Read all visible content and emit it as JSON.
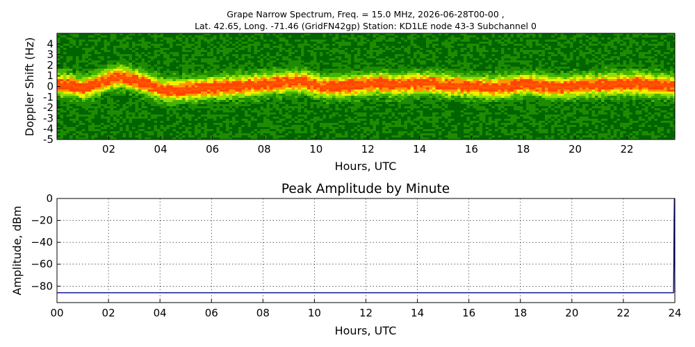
{
  "figure": {
    "title_line1": "Grape Narrow Spectrum, Freq. = 15.0 MHz, 2026-06-28T00-00 ,",
    "title_line2": "Lat.  42.65, Long. -71.46 (GridFN42gp) Station: KD1LE node 43-3 Subchannel 0"
  },
  "chart_data": [
    {
      "type": "heatmap",
      "title": "",
      "xlabel": "Hours, UTC",
      "ylabel": "Doppler Shift (Hz)",
      "xlim": [
        0,
        23.85
      ],
      "ylim": [
        -5,
        5
      ],
      "x_tick_values": [
        2,
        4,
        6,
        8,
        10,
        12,
        14,
        16,
        18,
        20,
        22
      ],
      "x_tick_labels": [
        "02",
        "04",
        "06",
        "08",
        "10",
        "12",
        "14",
        "16",
        "18",
        "20",
        "22"
      ],
      "y_tick_values": [
        4,
        3,
        2,
        1,
        0,
        -1,
        -2,
        -3,
        -4,
        -5
      ],
      "y_tick_labels": [
        "4",
        "3",
        "2",
        "1",
        "0",
        "-1",
        "-2",
        "-3",
        "-4",
        "-5"
      ],
      "colormap": [
        "#006400",
        "#1e8c00",
        "#46b400",
        "#96dc00",
        "#f0f000",
        "#ff9600",
        "#ff4600"
      ],
      "peak_doppler_trace": {
        "hours": [
          0,
          0.5,
          1,
          1.5,
          2,
          2.5,
          3,
          3.5,
          4,
          4.5,
          5,
          5.5,
          6,
          6.5,
          7,
          7.5,
          8,
          8.5,
          9,
          9.5,
          10,
          10.5,
          11,
          11.5,
          12,
          12.5,
          13,
          13.5,
          14,
          14.5,
          15,
          15.5,
          16,
          16.5,
          17,
          17.5,
          18,
          18.5,
          19,
          19.5,
          20,
          20.5,
          21,
          21.5,
          22,
          22.5,
          23,
          23.5,
          23.85
        ],
        "hz": [
          0.2,
          0.1,
          -0.2,
          0.2,
          0.7,
          0.9,
          0.6,
          0.2,
          -0.3,
          -0.4,
          -0.3,
          -0.2,
          -0.1,
          -0.1,
          0.0,
          0.1,
          0.2,
          0.3,
          0.4,
          0.5,
          0.1,
          -0.1,
          0.0,
          0.1,
          0.2,
          0.3,
          0.1,
          0.2,
          0.3,
          0.3,
          0.1,
          0.1,
          0.0,
          -0.1,
          -0.1,
          0.0,
          0.2,
          0.1,
          0.0,
          -0.1,
          0.0,
          0.1,
          0.1,
          0.2,
          0.2,
          0.3,
          0.1,
          0.1,
          0.0
        ]
      }
    },
    {
      "type": "line",
      "title": "Peak Amplitude by Minute",
      "xlabel": "Hours, UTC",
      "ylabel": "Amplitude, dBm",
      "xlim": [
        0,
        24
      ],
      "ylim": [
        -95,
        0
      ],
      "grid": true,
      "x_tick_values": [
        0,
        2,
        4,
        6,
        8,
        10,
        12,
        14,
        16,
        18,
        20,
        22,
        24
      ],
      "x_tick_labels": [
        "00",
        "02",
        "04",
        "06",
        "08",
        "10",
        "12",
        "14",
        "16",
        "18",
        "20",
        "22",
        "24"
      ],
      "y_tick_values": [
        0,
        -20,
        -40,
        -60,
        -80
      ],
      "y_tick_labels": [
        "0",
        "−20",
        "−40",
        "−60",
        "−80"
      ],
      "series": [
        {
          "color": "#00008b",
          "x": [
            0,
            2,
            4,
            6,
            8,
            10,
            12,
            14,
            16,
            18,
            20,
            22,
            23.95,
            23.96,
            23.97,
            23.98,
            24
          ],
          "y": [
            -86,
            -86,
            -86,
            -86,
            -86,
            -86,
            -86,
            -86,
            -86,
            -86,
            -86,
            -86,
            -86,
            -60,
            -20,
            0,
            -86
          ]
        }
      ]
    }
  ]
}
